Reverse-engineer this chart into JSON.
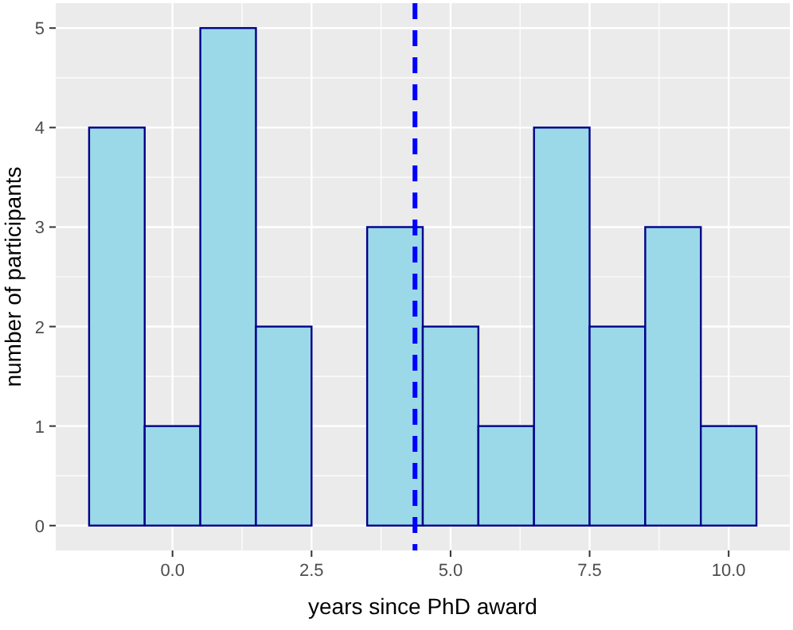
{
  "chart_data": {
    "type": "histogram",
    "xlabel": "years since PhD award",
    "ylabel": "number of participants",
    "bins": [
      -1.5,
      -0.5,
      0.5,
      1.5,
      2.5,
      3.5,
      4.5,
      5.5,
      6.5,
      7.5,
      8.5,
      9.5,
      10.5
    ],
    "values": [
      4,
      1,
      5,
      2,
      0,
      3,
      2,
      1,
      4,
      2,
      3,
      1
    ],
    "color": "#9bd9e8",
    "xlim": [
      -2.1,
      11.1
    ],
    "xticks": [
      {
        "value": 0,
        "label": "0.0"
      },
      {
        "value": 2.5,
        "label": "2.5"
      },
      {
        "value": 5,
        "label": "5.0"
      },
      {
        "value": 7.5,
        "label": "7.5"
      },
      {
        "value": 10,
        "label": "10.0"
      }
    ],
    "ylim": [
      -0.25,
      5.25
    ],
    "yticks": [
      0,
      1,
      2,
      3,
      4,
      5
    ],
    "grid": true,
    "ref_lines": [
      {
        "axis": "x",
        "value": 4.36,
        "color": "#0000ff",
        "line_style": "dashed"
      }
    ]
  }
}
